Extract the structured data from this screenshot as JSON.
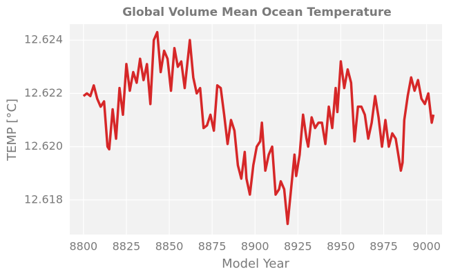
{
  "chart_data": {
    "type": "line",
    "title": "Global Volume Mean Ocean Temperature",
    "x_label": "Model Year",
    "y_label": "TEMP [°C]",
    "xlim": [
      8792,
      9009
    ],
    "ylim": [
      12.6167,
      12.6246
    ],
    "xticks": [
      8800,
      8825,
      8850,
      8875,
      8900,
      8925,
      8950,
      8975,
      9000
    ],
    "yticks": [
      12.618,
      {
        "value": 12.62,
        "label": "12.620"
      },
      12.622,
      12.624
    ],
    "grid": true,
    "x": [
      8800,
      8802,
      8804,
      8806,
      8808,
      8810,
      8812,
      8814,
      8815,
      8817,
      8819,
      8821,
      8823,
      8825,
      8827,
      8829,
      8831,
      8833,
      8835,
      8837,
      8839,
      8841,
      8843,
      8845,
      8847,
      8849,
      8851,
      8853,
      8855,
      8857,
      8859,
      8862,
      8864,
      8866,
      8868,
      8870,
      8872,
      8874,
      8876,
      8878,
      8880,
      8882,
      8884,
      8886,
      8888,
      8890,
      8892,
      8894,
      8895,
      8897,
      8899,
      8901,
      8903,
      8904,
      8906,
      8908,
      8910,
      8912,
      8914,
      8915,
      8917,
      8919,
      8921,
      8923,
      8924,
      8926,
      8928,
      8930,
      8931,
      8933,
      8935,
      8937,
      8939,
      8941,
      8943,
      8945,
      8947,
      8948,
      8950,
      8952,
      8954,
      8956,
      8958,
      8960,
      8962,
      8964,
      8966,
      8968,
      8970,
      8972,
      8974,
      8976,
      8978,
      8980,
      8982,
      8985,
      8986,
      8987,
      8989,
      8991,
      8993,
      8995,
      8997,
      8999,
      9001,
      9003,
      9004
    ],
    "series": [
      {
        "name": "TEMP",
        "color": "#d62728",
        "values": [
          12.6219,
          12.622,
          12.6219,
          12.6223,
          12.6218,
          12.6215,
          12.6217,
          12.62,
          12.6199,
          12.6214,
          12.6203,
          12.6222,
          12.6212,
          12.6231,
          12.6221,
          12.6228,
          12.6224,
          12.6233,
          12.6225,
          12.6231,
          12.6216,
          12.624,
          12.6243,
          12.6228,
          12.6236,
          12.6233,
          12.6221,
          12.6237,
          12.623,
          12.6232,
          12.6222,
          12.624,
          12.6226,
          12.622,
          12.6222,
          12.6207,
          12.6208,
          12.6212,
          12.6206,
          12.6223,
          12.6222,
          12.6212,
          12.6201,
          12.621,
          12.6206,
          12.6193,
          12.6188,
          12.6198,
          12.6188,
          12.6182,
          12.6193,
          12.62,
          12.6202,
          12.6209,
          12.6191,
          12.6197,
          12.62,
          12.6182,
          12.6184,
          12.6187,
          12.6184,
          12.6171,
          12.6184,
          12.6197,
          12.6189,
          12.6197,
          12.6212,
          12.6203,
          12.62,
          12.6211,
          12.6207,
          12.6209,
          12.6209,
          12.6201,
          12.6215,
          12.6207,
          12.6222,
          12.6213,
          12.6232,
          12.6222,
          12.6229,
          12.6224,
          12.6202,
          12.6215,
          12.6215,
          12.6212,
          12.6203,
          12.6209,
          12.6219,
          12.6211,
          12.62,
          12.621,
          12.62,
          12.6205,
          12.6203,
          12.6191,
          12.6194,
          12.621,
          12.6219,
          12.6226,
          12.6221,
          12.6225,
          12.6218,
          12.6216,
          12.622,
          12.6209,
          12.6212
        ]
      }
    ]
  }
}
